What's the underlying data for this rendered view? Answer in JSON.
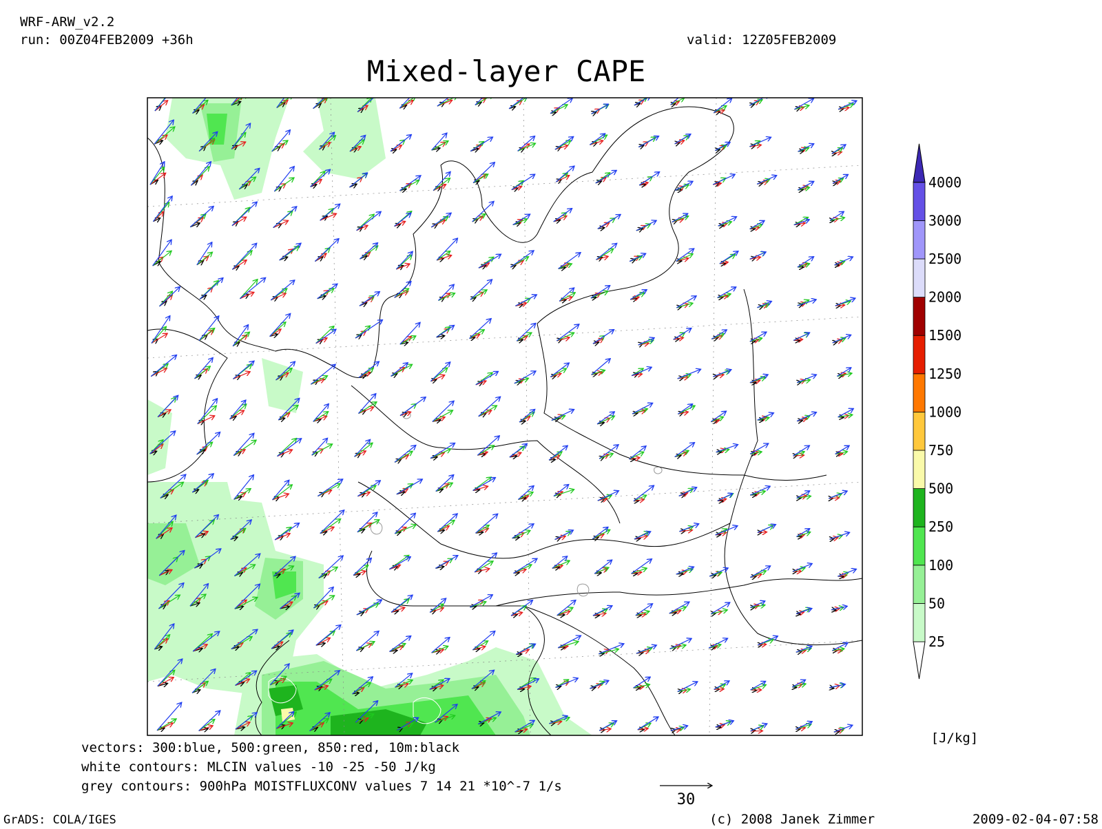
{
  "header": {
    "model": "WRF-ARW_v2.2",
    "run": "run: 00Z04FEB2009 +36h",
    "valid": "valid: 12Z05FEB2009"
  },
  "title": "Mixed-layer CAPE",
  "colorbar": {
    "levels": [
      25,
      50,
      100,
      250,
      500,
      750,
      1000,
      1250,
      1500,
      2000,
      2500,
      3000,
      4000
    ],
    "colors": [
      "#ffffff",
      "#c8fac8",
      "#96f096",
      "#50e650",
      "#1eb41e",
      "#fafaaa",
      "#ffc83c",
      "#ff7800",
      "#e61e00",
      "#a00000",
      "#dcdcfa",
      "#a096fa",
      "#6450e6",
      "#3c28b4"
    ],
    "unit": "[J/kg]"
  },
  "notes": [
    "vectors: 300:blue, 500:green, 850:red, 10m:black",
    "white contours: MLCIN values -10 -25 -50 J/kg",
    "grey contours: 900hPa MOISTFLUXCONV values 7 14 21 *10^-7 1/s"
  ],
  "vector_scale": 30,
  "footer": {
    "software": "GrADS: COLA/IGES",
    "copyright": "(c) 2008 Janek Zimmer",
    "timestamp": "2009-02-04-07:58"
  }
}
